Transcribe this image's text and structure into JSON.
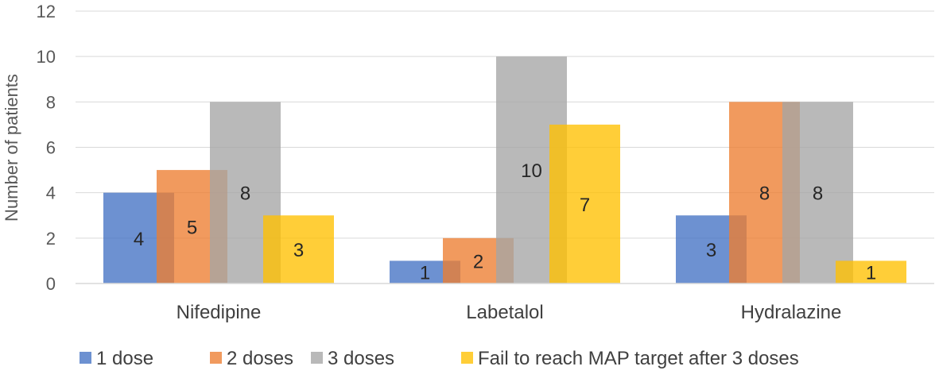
{
  "chart_data": {
    "type": "bar",
    "title": "",
    "xlabel": "",
    "ylabel": "Number of patients",
    "ylim": [
      0,
      12
    ],
    "yticks": [
      0,
      2,
      4,
      6,
      8,
      10,
      12
    ],
    "grid": true,
    "legend_position": "bottom",
    "categories": [
      "Nifedipine",
      "Labetalol",
      "Hydralazine"
    ],
    "series": [
      {
        "name": "1 dose",
        "color": "#4472C4",
        "values": [
          4,
          1,
          3
        ]
      },
      {
        "name": "2 doses",
        "color": "#ED7D31",
        "values": [
          5,
          2,
          8
        ]
      },
      {
        "name": "3 doses",
        "color": "#A5A5A5",
        "values": [
          8,
          10,
          8
        ]
      },
      {
        "name": "Fail to reach MAP target after 3 doses",
        "color": "#FFC000",
        "values": [
          3,
          7,
          1
        ]
      }
    ]
  }
}
